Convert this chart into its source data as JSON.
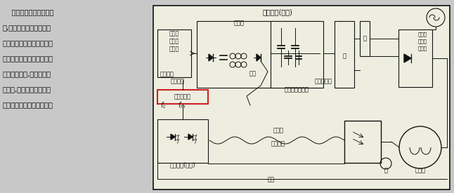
{
  "bg_color": "#d0d0d0",
  "diagram_bg": "#f0f0e8",
  "text_color": "#111111",
  "line_color": "#111111",
  "highlight_color": "#cc2222",
  "left_text_lines": [
    "    本电路是使用光电耦合",
    "器,对正在运行的电机速度",
    "实施光电控制的电路。因这",
    "种电路分离了电机控制网络",
    "中的机械部件,因而避免了",
    "地回路,保护逻辑电路免受",
    "来自负载的高压瞬态影响。"
  ],
  "title_diagram": "光耦合器(发送)",
  "label_phase": "相位控\n制与触\n发器件",
  "label_twisted1": "双绞线",
  "label_fiber1": "光纤",
  "label_scr": "光可控硅整流器",
  "label_reflective": "反射敏感器",
  "label_error": "误差信号",
  "label_comparator": "频率比较器",
  "label_fc": "$f_c$",
  "label_fm": "$f_m$",
  "label_twisted2": "双绞线",
  "label_feedback": "反馈路径",
  "label_coupler_recv": "光耦合器(接收)",
  "label_fiber2": "光纤",
  "label_encoder": "触",
  "label_motor": "电动机",
  "label_triac": "三端双\n向可控\n硅开关",
  "label_bridge": "桥",
  "label_power": "电"
}
